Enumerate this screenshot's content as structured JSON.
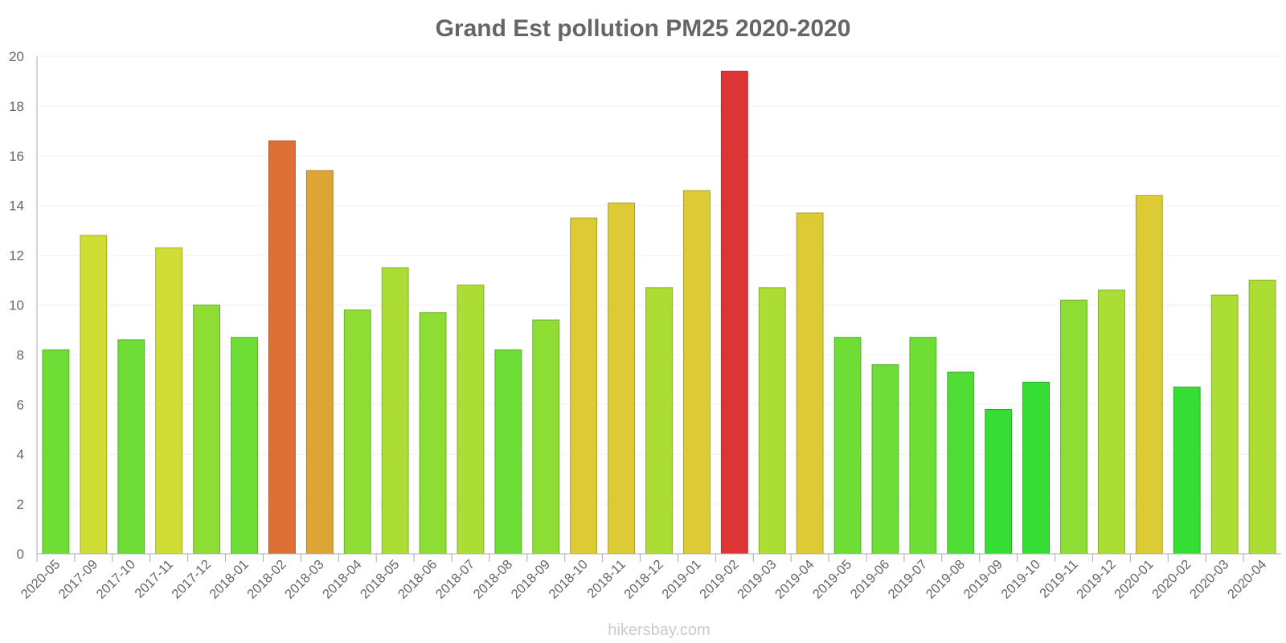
{
  "chart_data": {
    "type": "bar",
    "title": "Grand Est pollution PM25 2020-2020",
    "xlabel": "",
    "ylabel": "",
    "ylim": [
      0,
      20
    ],
    "yticks": [
      0,
      2,
      4,
      6,
      8,
      10,
      12,
      14,
      16,
      18,
      20
    ],
    "grid": true,
    "categories": [
      "2020-05",
      "2017-09",
      "2017-10",
      "2017-11",
      "2017-12",
      "2018-01",
      "2018-02",
      "2018-03",
      "2018-04",
      "2018-05",
      "2018-06",
      "2018-07",
      "2018-08",
      "2018-09",
      "2018-10",
      "2018-11",
      "2018-12",
      "2019-01",
      "2019-02",
      "2019-03",
      "2019-04",
      "2019-05",
      "2019-06",
      "2019-07",
      "2019-08",
      "2019-09",
      "2019-10",
      "2019-11",
      "2019-12",
      "2020-01",
      "2020-02",
      "2020-03",
      "2020-04"
    ],
    "values": [
      8.2,
      12.8,
      8.6,
      12.3,
      10.0,
      8.7,
      16.6,
      15.4,
      9.8,
      11.5,
      9.7,
      10.8,
      8.2,
      9.4,
      13.5,
      14.1,
      10.7,
      14.6,
      19.4,
      10.7,
      13.7,
      8.7,
      7.6,
      8.7,
      7.3,
      5.8,
      6.9,
      10.2,
      10.6,
      14.4,
      6.7,
      10.4,
      11.0
    ],
    "colors": [
      "#6edd35",
      "#cfdd35",
      "#6edd35",
      "#cfdd35",
      "#8ddd35",
      "#6edd35",
      "#dd7035",
      "#dda535",
      "#8ddd35",
      "#acdd35",
      "#8ddd35",
      "#acdd35",
      "#6edd35",
      "#8ddd35",
      "#ddcb35",
      "#ddcb35",
      "#acdd35",
      "#ddcb35",
      "#dd3535",
      "#acdd35",
      "#ddcb35",
      "#6edd35",
      "#6edd35",
      "#6edd35",
      "#4fdd35",
      "#35dd35",
      "#35dd35",
      "#8ddd35",
      "#acdd35",
      "#ddcb35",
      "#35dd35",
      "#acdd35",
      "#acdd35"
    ]
  },
  "watermark": "hikersbay.com"
}
